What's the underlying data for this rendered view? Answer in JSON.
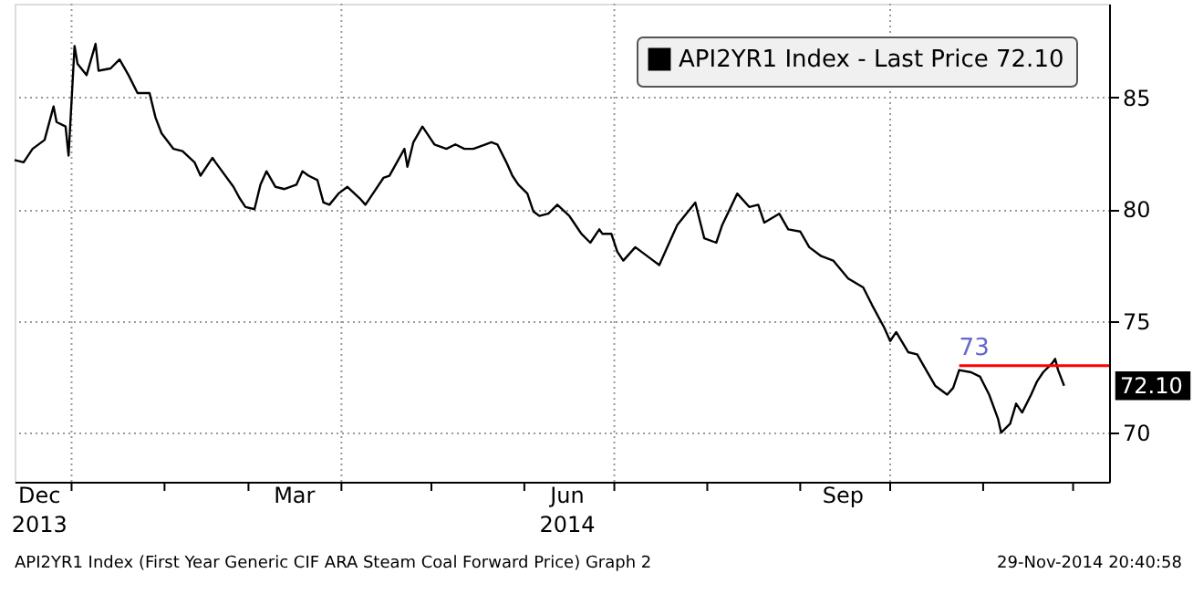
{
  "chart_data": {
    "type": "line",
    "x": [
      "2013-12-13",
      "2013-12-16",
      "2013-12-19",
      "2013-12-23",
      "2013-12-26",
      "2013-12-27",
      "2013-12-30",
      "2013-12-31",
      "2014-01-02",
      "2014-01-03",
      "2014-01-06",
      "2014-01-09",
      "2014-01-10",
      "2014-01-14",
      "2014-01-17",
      "2014-01-20",
      "2014-01-23",
      "2014-01-27",
      "2014-01-29",
      "2014-01-31",
      "2014-02-04",
      "2014-02-07",
      "2014-02-11",
      "2014-02-13",
      "2014-02-17",
      "2014-02-18",
      "2014-02-24",
      "2014-02-26",
      "2014-02-28",
      "2014-03-03",
      "2014-03-05",
      "2014-03-07",
      "2014-03-10",
      "2014-03-13",
      "2014-03-17",
      "2014-03-19",
      "2014-03-21",
      "2014-03-24",
      "2014-03-26",
      "2014-03-28",
      "2014-03-31",
      "2014-04-03",
      "2014-04-07",
      "2014-04-09",
      "2014-04-11",
      "2014-04-15",
      "2014-04-17",
      "2014-04-22",
      "2014-04-23",
      "2014-04-25",
      "2014-04-28",
      "2014-05-01",
      "2014-05-02",
      "2014-05-06",
      "2014-05-09",
      "2014-05-12",
      "2014-05-15",
      "2014-05-19",
      "2014-05-21",
      "2014-05-23",
      "2014-05-26",
      "2014-05-28",
      "2014-05-30",
      "2014-06-02",
      "2014-06-04",
      "2014-06-06",
      "2014-06-09",
      "2014-06-12",
      "2014-06-16",
      "2014-06-17",
      "2014-06-20",
      "2014-06-23",
      "2014-06-26",
      "2014-06-27",
      "2014-06-30",
      "2014-07-02",
      "2014-07-04",
      "2014-07-08",
      "2014-07-14",
      "2014-07-16",
      "2014-07-18",
      "2014-07-22",
      "2014-07-28",
      "2014-07-31",
      "2014-08-04",
      "2014-08-06",
      "2014-08-11",
      "2014-08-15",
      "2014-08-18",
      "2014-08-20",
      "2014-08-25",
      "2014-08-28",
      "2014-09-01",
      "2014-09-04",
      "2014-09-08",
      "2014-09-12",
      "2014-09-17",
      "2014-09-22",
      "2014-09-25",
      "2014-09-29",
      "2014-10-01",
      "2014-10-03",
      "2014-10-07",
      "2014-10-10",
      "2014-10-13",
      "2014-10-16",
      "2014-10-20",
      "2014-10-22",
      "2014-10-24",
      "2014-10-28",
      "2014-10-31",
      "2014-11-03",
      "2014-11-06",
      "2014-11-07",
      "2014-11-10",
      "2014-11-12",
      "2014-11-14",
      "2014-11-17",
      "2014-11-19",
      "2014-11-21",
      "2014-11-24",
      "2014-11-25",
      "2014-11-26",
      "2014-11-28"
    ],
    "series": [
      {
        "name": "API2YR1 Index - Last Price 72.10",
        "color": "#000000",
        "values": [
          82.2,
          82.1,
          82.7,
          83.1,
          84.6,
          83.9,
          83.7,
          82.4,
          87.3,
          86.5,
          86.0,
          87.4,
          86.2,
          86.3,
          86.7,
          86.0,
          85.2,
          85.2,
          84.1,
          83.4,
          82.7,
          82.6,
          82.1,
          81.5,
          82.3,
          82.1,
          81.0,
          80.5,
          80.1,
          80.0,
          81.1,
          81.7,
          81.0,
          80.9,
          81.1,
          81.7,
          81.5,
          81.3,
          80.3,
          80.2,
          80.7,
          81.0,
          80.5,
          80.2,
          80.6,
          81.4,
          81.5,
          82.7,
          81.9,
          83.0,
          83.7,
          83.1,
          82.9,
          82.7,
          82.9,
          82.7,
          82.7,
          82.9,
          83.0,
          82.9,
          82.1,
          81.5,
          81.1,
          80.7,
          79.9,
          79.7,
          79.8,
          80.2,
          79.7,
          79.5,
          78.9,
          78.5,
          79.1,
          78.9,
          78.9,
          78.1,
          77.7,
          78.3,
          77.7,
          77.5,
          78.1,
          79.3,
          80.3,
          78.7,
          78.5,
          79.3,
          80.7,
          80.1,
          80.2,
          79.4,
          79.8,
          79.1,
          79.0,
          78.3,
          77.9,
          77.7,
          76.9,
          76.5,
          75.7,
          74.7,
          74.1,
          74.5,
          73.6,
          73.5,
          72.8,
          72.1,
          71.7,
          72.0,
          72.8,
          72.7,
          72.5,
          71.7,
          70.6,
          70.0,
          70.4,
          71.3,
          70.9,
          71.7,
          72.3,
          72.7,
          73.1,
          73.3,
          72.8,
          72.1
        ]
      },
      {
        "type": "line",
        "color": "#ff0000",
        "x": [
          "2014-10-24",
          "2014-12-13"
        ],
        "values": [
          73,
          73
        ]
      }
    ],
    "xlim": [
      "2013-12-13",
      "2014-12-13"
    ],
    "xticks": [
      {
        "value": "2013-12-21",
        "label": "Dec 2013"
      },
      {
        "value": "2014-01-01",
        "label": null
      },
      {
        "value": "2014-02-01",
        "label": null
      },
      {
        "value": "2014-03-01",
        "label": null
      },
      {
        "value": "2014-03-16",
        "label": "Mar"
      },
      {
        "value": "2014-04-01",
        "label": null
      },
      {
        "value": "2014-05-01",
        "label": null
      },
      {
        "value": "2014-06-01",
        "label": null
      },
      {
        "value": "2014-06-15",
        "label": "Jun 2014"
      },
      {
        "value": "2014-07-01",
        "label": null
      },
      {
        "value": "2014-08-01",
        "label": null
      },
      {
        "value": "2014-09-01",
        "label": null
      },
      {
        "value": "2014-09-15",
        "label": "Sep"
      },
      {
        "value": "2014-10-01",
        "label": null
      },
      {
        "value": "2014-11-01",
        "label": null
      },
      {
        "value": "2014-12-01",
        "label": null
      }
    ],
    "ylim": [
      67.8,
      89.2
    ],
    "yticks": [
      70,
      75,
      80,
      85
    ],
    "grid": true,
    "legend": "top right",
    "marker": "none",
    "annotations": [
      {
        "text": "73",
        "x": "2014-10-24",
        "y": 73
      },
      {
        "text": "72.10",
        "y": 72.1
      },
      "API2YR1 Index (First Year Generic CIF ARA Steam Coal Forward Price) Graph 2",
      "29-Nov-2014 20:40:58"
    ]
  }
}
